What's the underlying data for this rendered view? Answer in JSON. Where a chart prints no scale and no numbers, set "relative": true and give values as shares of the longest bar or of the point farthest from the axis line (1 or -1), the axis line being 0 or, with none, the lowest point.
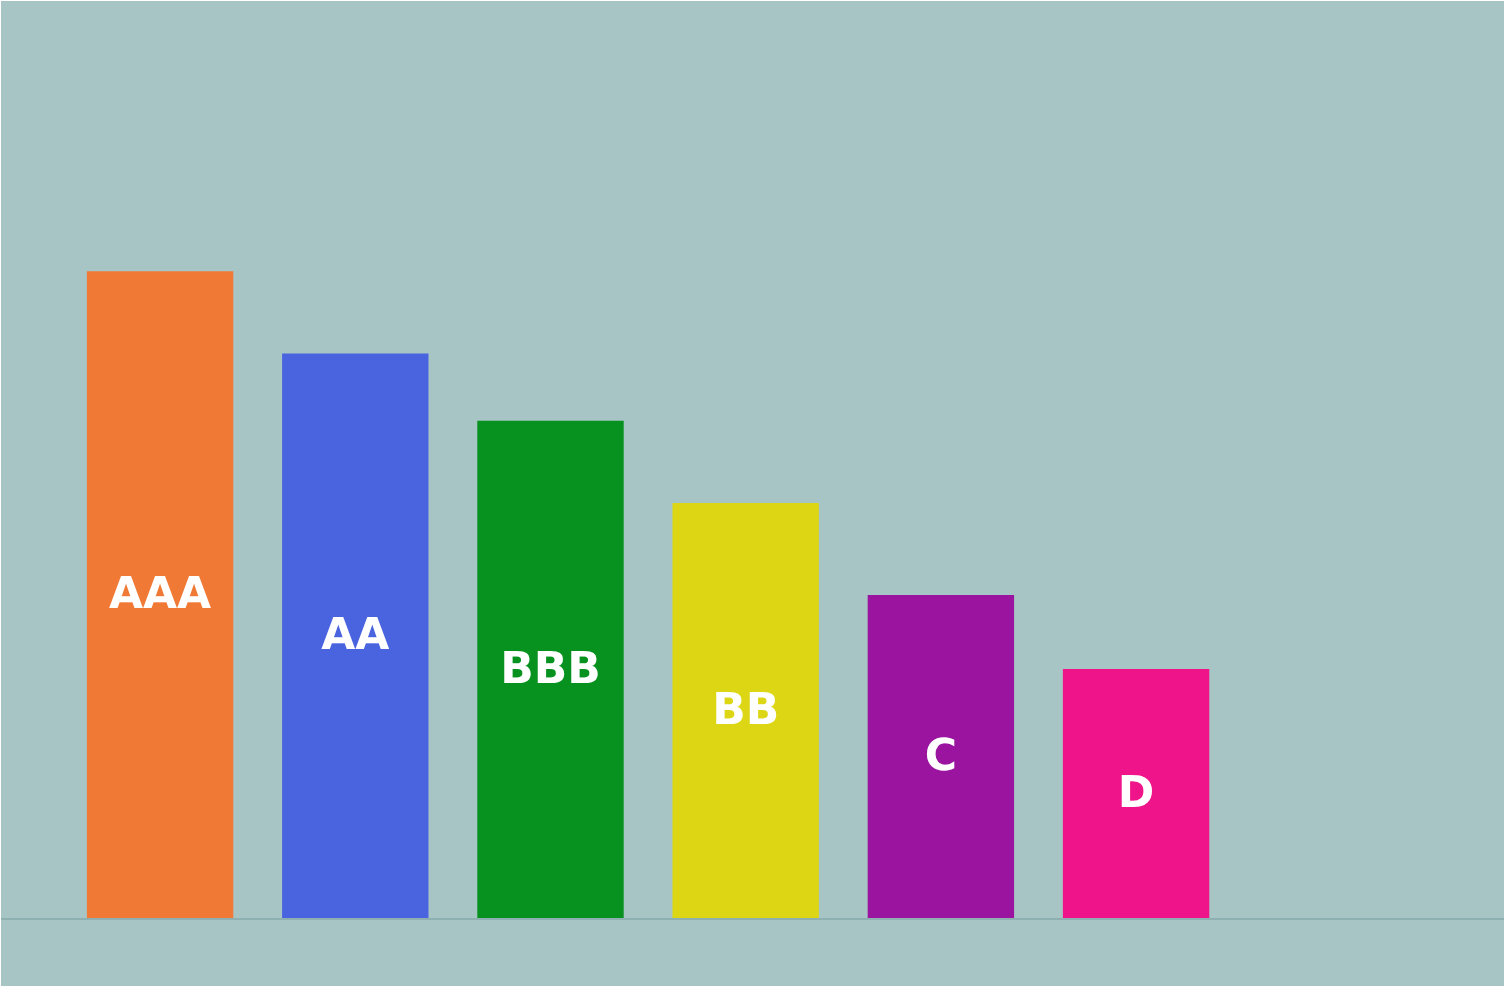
{
  "chart_data": {
    "type": "bar",
    "relative": true,
    "categories": [
      "AAA",
      "AA",
      "BBB",
      "BB",
      "C",
      "D"
    ],
    "values": [
      1,
      0.873,
      0.769,
      0.642,
      0.5,
      0.386
    ],
    "colors": [
      "#f07a35",
      "#4a64e0",
      "#07921f",
      "#dcd614",
      "#9a14a0",
      "#f0148a"
    ],
    "grid": false,
    "tick_labels": false
  }
}
